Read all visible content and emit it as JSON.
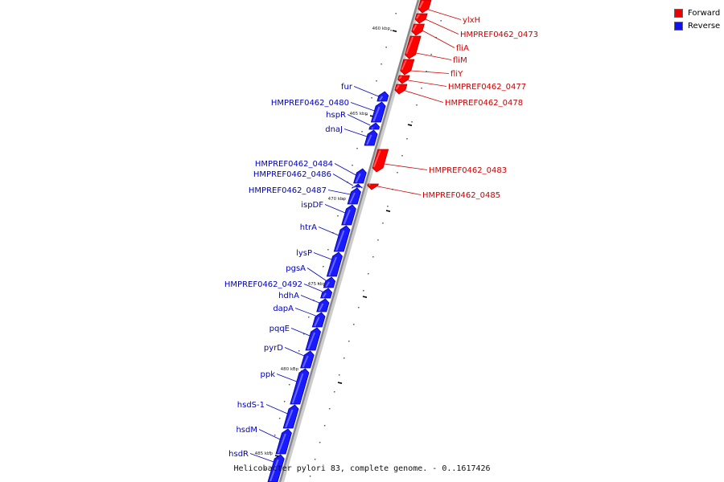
{
  "legend": {
    "forward": {
      "label": "Forward",
      "color": "#ee0000"
    },
    "reverse": {
      "label": "Reverse",
      "color": "#1111ee"
    }
  },
  "caption": "Helicobacter pylori 83, complete genome. - 0..1617426",
  "colors": {
    "forward_fill": "#ff0000",
    "forward_dark": "#aa0000",
    "reverse_fill": "#1a1aff",
    "reverse_dark": "#0000a0",
    "forward_label": "#cc0000",
    "reverse_label": "#0000bb",
    "backbone": "#888888"
  },
  "kbp_labels": [
    "460 kbp",
    "465 kbp",
    "470 kbp",
    "475 kbp",
    "480 kbp",
    "485 kbp"
  ],
  "forward_genes": [
    "ylxH",
    "HMPREF0462_0473",
    "fliA",
    "fliM",
    "fliY",
    "HMPREF0462_0477",
    "HMPREF0462_0478",
    "HMPREF0462_0483",
    "HMPREF0462_0485"
  ],
  "reverse_genes": [
    "fur",
    "HMPREF0462_0480",
    "hspR",
    "dnaJ",
    "HMPREF0462_0484",
    "HMPREF0462_0486",
    "HMPREF0462_0487",
    "ispDF",
    "htrA",
    "lysP",
    "pgsA",
    "HMPREF0462_0492",
    "hdhA",
    "dapA",
    "pqqE",
    "pyrD",
    "ppk",
    "hsdS-1",
    "hsdM",
    "hsdR"
  ]
}
